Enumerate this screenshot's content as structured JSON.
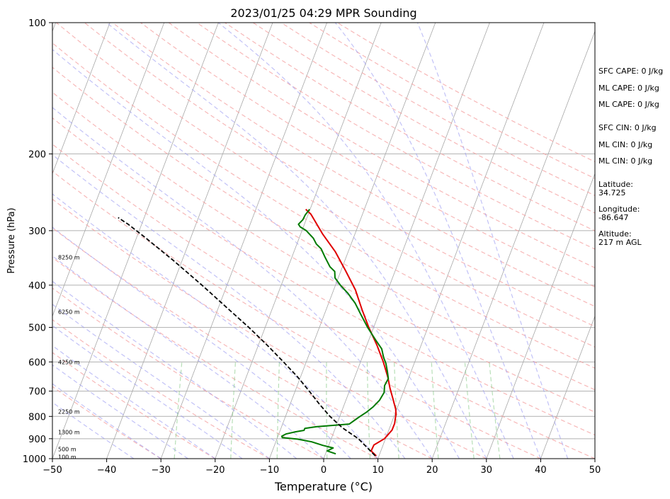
{
  "chart_data": {
    "type": "line",
    "title": "2023/01/25 04:29 MPR Sounding",
    "xlabel": "Temperature (°C)",
    "ylabel": "Pressure (hPa)",
    "xlim": [
      -50,
      50
    ],
    "ylim": [
      1000,
      100
    ],
    "y_scale": "log",
    "skew": "skew-T log-p",
    "grid": true,
    "x_ticks": [
      "−50",
      "−40",
      "−30",
      "−20",
      "−10",
      "0",
      "10",
      "20",
      "30",
      "40",
      "50"
    ],
    "x_tick_values": [
      -50,
      -40,
      -30,
      -20,
      -10,
      0,
      10,
      20,
      30,
      40,
      50
    ],
    "y_ticks": [
      "1000",
      "900",
      "800",
      "700",
      "600",
      "500",
      "400",
      "300",
      "200",
      "100"
    ],
    "y_tick_values": [
      1000,
      900,
      800,
      700,
      600,
      500,
      400,
      300,
      200,
      100
    ],
    "height_labels": [
      {
        "text": "100 m",
        "p": 990
      },
      {
        "text": "500 m",
        "p": 950
      },
      {
        "text": "1300 m",
        "p": 870
      },
      {
        "text": "2250 m",
        "p": 780
      },
      {
        "text": "4250 m",
        "p": 600
      },
      {
        "text": "6250 m",
        "p": 460
      },
      {
        "text": "8250 m",
        "p": 345
      }
    ],
    "series": [
      {
        "name": "Temperature",
        "color": "#e00000",
        "points": [
          [
            9.5,
            985
          ],
          [
            8.2,
            960
          ],
          [
            8.3,
            930
          ],
          [
            9.8,
            900
          ],
          [
            10.6,
            860
          ],
          [
            10.6,
            830
          ],
          [
            10.2,
            790
          ],
          [
            9.8,
            770
          ],
          [
            8.6,
            730
          ],
          [
            7.3,
            690
          ],
          [
            6.1,
            650
          ],
          [
            4.2,
            600
          ],
          [
            1.9,
            550
          ],
          [
            -0.9,
            500
          ],
          [
            -3.4,
            455
          ],
          [
            -6.0,
            410
          ],
          [
            -9.2,
            370
          ],
          [
            -12.4,
            335
          ],
          [
            -16.0,
            305
          ],
          [
            -19.5,
            275
          ],
          [
            -20.8,
            268
          ]
        ]
      },
      {
        "name": "Dewpoint",
        "color": "#007a00",
        "points": [
          [
            1.9,
            975
          ],
          [
            0.1,
            960
          ],
          [
            1.0,
            945
          ],
          [
            -1.1,
            932
          ],
          [
            -3.4,
            915
          ],
          [
            -6.2,
            902
          ],
          [
            -9.1,
            895
          ],
          [
            -9.3,
            888
          ],
          [
            -8.7,
            878
          ],
          [
            -7.1,
            868
          ],
          [
            -5.6,
            861
          ],
          [
            -5.6,
            852
          ],
          [
            -3.6,
            845
          ],
          [
            2.3,
            833
          ],
          [
            3.5,
            805
          ],
          [
            4.6,
            783
          ],
          [
            5.5,
            760
          ],
          [
            6.2,
            735
          ],
          [
            6.5,
            705
          ],
          [
            6.1,
            680
          ],
          [
            6.3,
            655
          ],
          [
            5.6,
            630
          ],
          [
            4.8,
            605
          ],
          [
            3.9,
            585
          ],
          [
            3.0,
            560
          ],
          [
            1.3,
            535
          ],
          [
            -1.1,
            500
          ],
          [
            -3.4,
            465
          ],
          [
            -5.1,
            440
          ],
          [
            -7.1,
            418
          ],
          [
            -9.1,
            400
          ],
          [
            -10.6,
            385
          ],
          [
            -11.1,
            372
          ],
          [
            -12.3,
            363
          ],
          [
            -13.9,
            345
          ],
          [
            -15.2,
            330
          ],
          [
            -16.4,
            322
          ],
          [
            -17.4,
            312
          ],
          [
            -19.2,
            300
          ],
          [
            -20.6,
            294
          ],
          [
            -21.1,
            290
          ],
          [
            -20.6,
            283
          ],
          [
            -20.5,
            276
          ],
          [
            -20.1,
            268
          ]
        ]
      },
      {
        "name": "Parcel",
        "color": "#000000",
        "style": "dashed",
        "points": [
          [
            9.3,
            985
          ],
          [
            5.0,
            900
          ],
          [
            1.3,
            850
          ],
          [
            -1.8,
            800
          ],
          [
            -4.6,
            750
          ],
          [
            -7.4,
            700
          ],
          [
            -10.5,
            650
          ],
          [
            -14.2,
            600
          ],
          [
            -18.3,
            550
          ],
          [
            -23.0,
            500
          ],
          [
            -28.5,
            450
          ],
          [
            -34.6,
            400
          ],
          [
            -41.8,
            350
          ],
          [
            -48.6,
            310
          ],
          [
            -52.5,
            290
          ],
          [
            -54.8,
            280
          ]
        ]
      }
    ]
  },
  "side_panel": {
    "sfc_cape": "SFC CAPE: 0 J/kg",
    "ml_cape_1": "ML CAPE: 0 J/kg",
    "ml_cape_2": "ML CAPE: 0 J/kg",
    "sfc_cin": "SFC CIN: 0 J/kg",
    "ml_cin_1": "ML CIN: 0 J/kg",
    "ml_cin_2": "ML CIN: 0 J/kg",
    "lat_label": "Latitude:",
    "lat_value": "34.725",
    "lon_label": "Longitude:",
    "lon_value": "-86.647",
    "alt_label": "Altitude:",
    "alt_value": "217 m AGL"
  }
}
